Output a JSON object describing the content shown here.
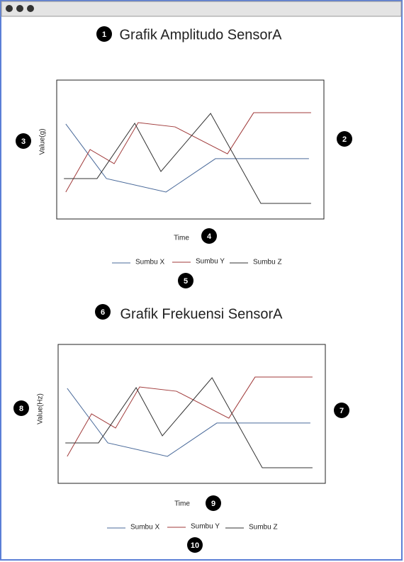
{
  "chart_data": [
    {
      "type": "line",
      "title": "Grafik Amplitudo SensorA",
      "ylabel": "Value(g)",
      "xlabel": "Time",
      "xlim": [
        0,
        100
      ],
      "ylim": [
        0,
        100
      ],
      "annotations": [
        1,
        2,
        3,
        4,
        5
      ],
      "series": [
        {
          "name": "Sumbu X",
          "color": "#4a6a9a",
          "x": [
            3.4,
            18.6,
            40.9,
            59.4,
            94.4
          ],
          "values": [
            68.4,
            29.1,
            19.4,
            43.4,
            43.4
          ]
        },
        {
          "name": "Sumbu Y",
          "color": "#a03a3a",
          "x": [
            3.4,
            12.5,
            21.5,
            30.5,
            44.3,
            63.9,
            73.7,
            95.2
          ],
          "values": [
            19.4,
            50,
            39.8,
            69.4,
            66.3,
            46.9,
            76.5,
            76.5
          ]
        },
        {
          "name": "Sumbu Z",
          "color": "#333333",
          "x": [
            2.7,
            15.1,
            29.2,
            39,
            57.6,
            76.4,
            95.2
          ],
          "values": [
            29.1,
            29.1,
            68.9,
            34.2,
            76,
            11.2,
            11.2
          ]
        }
      ]
    },
    {
      "type": "line",
      "title": "Grafik Frekuensi SensorA",
      "ylabel": "Value(Hz)",
      "xlabel": "Time",
      "xlim": [
        0,
        100
      ],
      "ylim": [
        0,
        100
      ],
      "annotations": [
        6,
        7,
        8,
        9,
        10
      ],
      "series": [
        {
          "name": "Sumbu X",
          "color": "#4a6a9a",
          "x": [
            3.4,
            18.6,
            40.9,
            59.4,
            94.4
          ],
          "values": [
            68.4,
            29.1,
            19.4,
            43.4,
            43.4
          ]
        },
        {
          "name": "Sumbu Y",
          "color": "#a03a3a",
          "x": [
            3.4,
            12.5,
            21.5,
            30.5,
            44.3,
            63.9,
            73.7,
            95.2
          ],
          "values": [
            19.4,
            50,
            39.8,
            69.4,
            66.3,
            46.9,
            76.5,
            76.5
          ]
        },
        {
          "name": "Sumbu Z",
          "color": "#333333",
          "x": [
            2.7,
            15.1,
            29.2,
            39,
            57.6,
            76.4,
            95.2
          ],
          "values": [
            29.1,
            29.1,
            68.9,
            34.2,
            76,
            11.2,
            11.2
          ]
        }
      ]
    }
  ]
}
